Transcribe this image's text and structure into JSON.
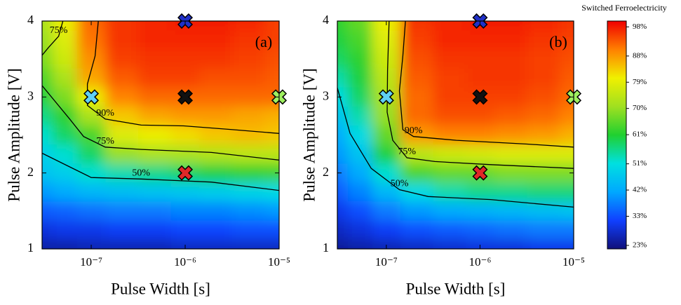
{
  "chart_data": [
    {
      "type": "contour",
      "panel_label": "(a)",
      "xlabel": "Pulse Width [s]",
      "ylabel": "Pulse Amplitude [V]",
      "log_x": true,
      "xlim": [
        3e-08,
        1e-05
      ],
      "ylim": [
        1,
        4
      ],
      "xticks": [
        {
          "value": 1e-07,
          "label": "10⁻⁷"
        },
        {
          "value": 1e-06,
          "label": "10⁻⁶"
        },
        {
          "value": 1e-05,
          "label": "10⁻⁵"
        }
      ],
      "yticks": [
        1,
        2,
        3,
        4
      ],
      "x": [
        3e-08,
        5e-08,
        1e-07,
        2e-07,
        5e-07,
        1e-06,
        2e-06,
        5e-06,
        1e-05
      ],
      "y": [
        4,
        3.75,
        3.5,
        3.25,
        3,
        2.75,
        2.5,
        2.25,
        2,
        1.75,
        1.5,
        1.25,
        1
      ],
      "z": [
        [
          72,
          80,
          92,
          96,
          97,
          98,
          98,
          97,
          95
        ],
        [
          70,
          78,
          91,
          96,
          97,
          97,
          97,
          96,
          95
        ],
        [
          68,
          76,
          89,
          95,
          96,
          96,
          96,
          95,
          94
        ],
        [
          64,
          72,
          87,
          93,
          95,
          95,
          94,
          94,
          93
        ],
        [
          60,
          68,
          80,
          90,
          92,
          92,
          92,
          92,
          92
        ],
        [
          56,
          62,
          72,
          84,
          87,
          88,
          88,
          87,
          86
        ],
        [
          52,
          58,
          64,
          78,
          80,
          82,
          84,
          85,
          84
        ],
        [
          48,
          52,
          58,
          70,
          72,
          72,
          73,
          74,
          74
        ],
        [
          46,
          48,
          52,
          54,
          56,
          58,
          60,
          62,
          63
        ],
        [
          40,
          42,
          44,
          45,
          46,
          47,
          48,
          49,
          50
        ],
        [
          34,
          35,
          36,
          37,
          37,
          38,
          38,
          39,
          40
        ],
        [
          29,
          30,
          30,
          31,
          31,
          32,
          32,
          33,
          33
        ],
        [
          25,
          25,
          26,
          26,
          26,
          27,
          27,
          27,
          27
        ]
      ],
      "contours": [
        {
          "label": "75%",
          "x": [
            3e-08,
            3.5e-08,
            4.5e-08,
            5e-08
          ],
          "y": [
            3.55,
            3.65,
            3.8,
            4
          ]
        },
        {
          "label": "90%",
          "x": [
            1.19e-07,
            1.1e-07,
            9.1e-08,
            9.1e-08,
            1.41e-07,
            3.4e-07,
            9.6e-07,
            3.2e-06,
            1e-05
          ],
          "y": [
            4,
            3.54,
            3.17,
            2.89,
            2.71,
            2.63,
            2.62,
            2.57,
            2.52
          ]
        },
        {
          "label": "75%",
          "x": [
            3e-08,
            5.9e-08,
            8.3e-08,
            1.41e-07,
            3.4e-07,
            1.9e-06,
            1e-05
          ],
          "y": [
            3.15,
            2.71,
            2.48,
            2.34,
            2.31,
            2.27,
            2.17
          ]
        },
        {
          "label": "50%",
          "x": [
            3e-08,
            5.9e-08,
            1e-07,
            3.4e-07,
            1.9e-06,
            1e-05
          ],
          "y": [
            2.26,
            2.08,
            1.94,
            1.92,
            1.88,
            1.77
          ]
        }
      ],
      "markers": [
        {
          "x": 1e-07,
          "y": 3,
          "color": "#5fd0f5"
        },
        {
          "x": 1e-06,
          "y": 4,
          "color": "#2030c8"
        },
        {
          "x": 1e-06,
          "y": 3,
          "color": "#111111"
        },
        {
          "x": 1e-06,
          "y": 2,
          "color": "#e02828"
        },
        {
          "x": 1e-05,
          "y": 3,
          "color": "#9ff060"
        }
      ]
    },
    {
      "type": "contour",
      "panel_label": "(b)",
      "xlabel": "Pulse Width [s]",
      "ylabel": "Pulse Amplitude [V]",
      "log_x": true,
      "xlim": [
        3e-08,
        1e-05
      ],
      "ylim": [
        1,
        4
      ],
      "xticks": [
        {
          "value": 1e-07,
          "label": "10⁻⁷"
        },
        {
          "value": 1e-06,
          "label": "10⁻⁶"
        },
        {
          "value": 1e-05,
          "label": "10⁻⁵"
        }
      ],
      "yticks": [
        1,
        2,
        3,
        4
      ],
      "x": [
        3e-08,
        5e-08,
        1e-07,
        2e-07,
        5e-07,
        1e-06,
        2e-06,
        5e-06,
        1e-05
      ],
      "y": [
        4,
        3.75,
        3.5,
        3.25,
        3,
        2.75,
        2.5,
        2.25,
        2,
        1.75,
        1.5,
        1.25,
        1
      ],
      "z": [
        [
          62,
          66,
          80,
          96,
          97,
          98,
          98,
          97,
          96
        ],
        [
          60,
          64,
          78,
          95,
          97,
          97,
          97,
          96,
          95
        ],
        [
          58,
          62,
          76,
          94,
          96,
          96,
          96,
          95,
          94
        ],
        [
          54,
          60,
          74,
          93,
          95,
          96,
          96,
          95,
          93
        ],
        [
          50,
          58,
          72,
          92,
          95,
          95,
          95,
          94,
          92
        ],
        [
          46,
          54,
          70,
          92,
          94,
          94,
          93,
          92,
          90
        ],
        [
          42,
          50,
          66,
          88,
          90,
          90,
          89,
          88,
          86
        ],
        [
          40,
          46,
          60,
          74,
          76,
          77,
          78,
          78,
          78
        ],
        [
          37,
          42,
          52,
          64,
          66,
          66,
          68,
          68,
          68
        ],
        [
          34,
          38,
          44,
          50,
          54,
          56,
          56,
          57,
          57
        ],
        [
          30,
          33,
          37,
          40,
          42,
          43,
          44,
          45,
          46
        ],
        [
          27,
          29,
          31,
          33,
          34,
          35,
          36,
          37,
          37
        ],
        [
          24,
          25,
          26,
          27,
          28,
          29,
          29,
          30,
          30
        ]
      ],
      "contours": [
        {
          "label": "90%",
          "x": [
            1.6e-07,
            1.5e-07,
            1.38e-07,
            1.5e-07,
            1.95e-07,
            5.6e-07,
            3.2e-06,
            1e-05
          ],
          "y": [
            4,
            3.54,
            3.08,
            2.57,
            2.48,
            2.43,
            2.38,
            2.34
          ]
        },
        {
          "label": "75%",
          "x": [
            1.07e-07,
            1.03e-07,
            1.02e-07,
            1.17e-07,
            1.66e-07,
            3.3e-07,
            1.3e-06,
            1e-05
          ],
          "y": [
            4,
            3.35,
            2.8,
            2.43,
            2.2,
            2.15,
            2.11,
            2.06
          ]
        },
        {
          "label": "50%",
          "x": [
            3e-08,
            4.1e-08,
            6.9e-08,
            1.38e-07,
            2.8e-07,
            1.3e-06,
            1e-05
          ],
          "y": [
            3.12,
            2.52,
            2.06,
            1.78,
            1.69,
            1.65,
            1.55
          ]
        }
      ],
      "markers": [
        {
          "x": 1e-07,
          "y": 3,
          "color": "#5fd0f5"
        },
        {
          "x": 1e-06,
          "y": 4,
          "color": "#2030c8"
        },
        {
          "x": 1e-06,
          "y": 3,
          "color": "#111111"
        },
        {
          "x": 1e-06,
          "y": 2,
          "color": "#e02828"
        },
        {
          "x": 1e-05,
          "y": 3,
          "color": "#9ff060"
        }
      ]
    }
  ],
  "colorbar": {
    "title": "Switched Ferroelectricity",
    "clim": [
      21.8,
      100
    ],
    "colormap": [
      "#10107a",
      "#1040ff",
      "#00a8ff",
      "#00e0e0",
      "#20d030",
      "#a0e020",
      "#f0f000",
      "#ff8000",
      "#f00000"
    ],
    "ticks": [
      {
        "value": 23,
        "label": "23%"
      },
      {
        "value": 33,
        "label": "33%"
      },
      {
        "value": 42,
        "label": "42%"
      },
      {
        "value": 51,
        "label": "51%"
      },
      {
        "value": 61,
        "label": "61%"
      },
      {
        "value": 70,
        "label": "70%"
      },
      {
        "value": 79,
        "label": "79%"
      },
      {
        "value": 88,
        "label": "88%"
      },
      {
        "value": 98,
        "label": "98%"
      }
    ]
  }
}
